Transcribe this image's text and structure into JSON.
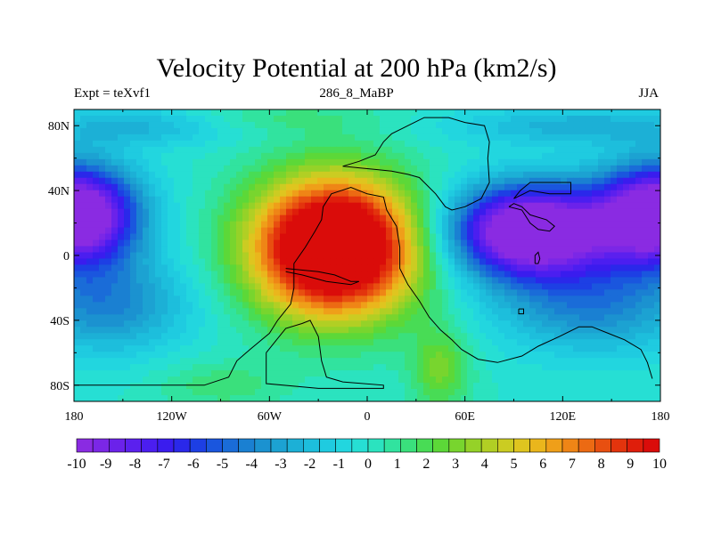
{
  "chart_data": {
    "type": "heatmap",
    "title": "Velocity Potential at 200 hPa (km2/s)",
    "left_string": "Expt = teXvf1",
    "center_string": "286_8_MaBP",
    "right_string": "JJA",
    "x_ticks": [
      "180",
      "120W",
      "60W",
      "0",
      "60E",
      "120E",
      "180"
    ],
    "x_tick_values": [
      -180,
      -120,
      -60,
      0,
      60,
      120,
      180
    ],
    "y_ticks": [
      "80N",
      "40N",
      "0",
      "40S",
      "80S"
    ],
    "y_tick_values": [
      80,
      40,
      0,
      -40,
      -80
    ],
    "xlim": [
      -180,
      180
    ],
    "ylim": [
      -90,
      90
    ],
    "colorbar": {
      "labels": [
        "-10",
        "-9",
        "-8",
        "-7",
        "-6",
        "-5",
        "-4",
        "-3",
        "-2",
        "-1",
        "0",
        "1",
        "2",
        "3",
        "4",
        "5",
        "6",
        "7",
        "8",
        "9",
        "10"
      ],
      "levels": [
        -10,
        -9.5,
        -9,
        -8.5,
        -8,
        -7.5,
        -7,
        -6.5,
        -6,
        -5.5,
        -5,
        -4.5,
        -4,
        -3.5,
        -3,
        -2.5,
        -2,
        -1.5,
        -1,
        -0.5,
        0,
        0.5,
        1,
        1.5,
        2,
        2.5,
        3,
        3.5,
        4,
        4.5,
        5,
        5.5,
        6,
        6.5,
        7,
        7.5,
        8,
        8.5,
        9,
        9.5,
        10
      ],
      "colors": [
        "#8a2be2",
        "#7b27e6",
        "#6b22ea",
        "#5b20ee",
        "#4b1ef0",
        "#3a1cee",
        "#2a28ea",
        "#1d3fe4",
        "#1a56de",
        "#1a6cd8",
        "#1a80d2",
        "#1b92d0",
        "#1ca2d2",
        "#1cb0d6",
        "#1dbedc",
        "#1fcbe0",
        "#22d6df",
        "#26dfd4",
        "#2be3bf",
        "#31e39f",
        "#3ae07c",
        "#48dc55",
        "#5cd838",
        "#78d52e",
        "#95d228",
        "#b1cf24",
        "#cbcc22",
        "#dfc51f",
        "#eab61c",
        "#ef9f19",
        "#ef8516",
        "#ec6a13",
        "#e84f10",
        "#e3340d",
        "#df1e0b",
        "#da0c0a"
      ]
    },
    "field_centers": [
      {
        "name": "positive-maximum",
        "lon": -20,
        "lat": 5,
        "value": 10
      },
      {
        "name": "negative-minimum-east",
        "lon": 100,
        "lat": 15,
        "value": -10
      },
      {
        "name": "negative-minimum-west",
        "lon": 180,
        "lat": 25,
        "value": -10
      }
    ]
  }
}
